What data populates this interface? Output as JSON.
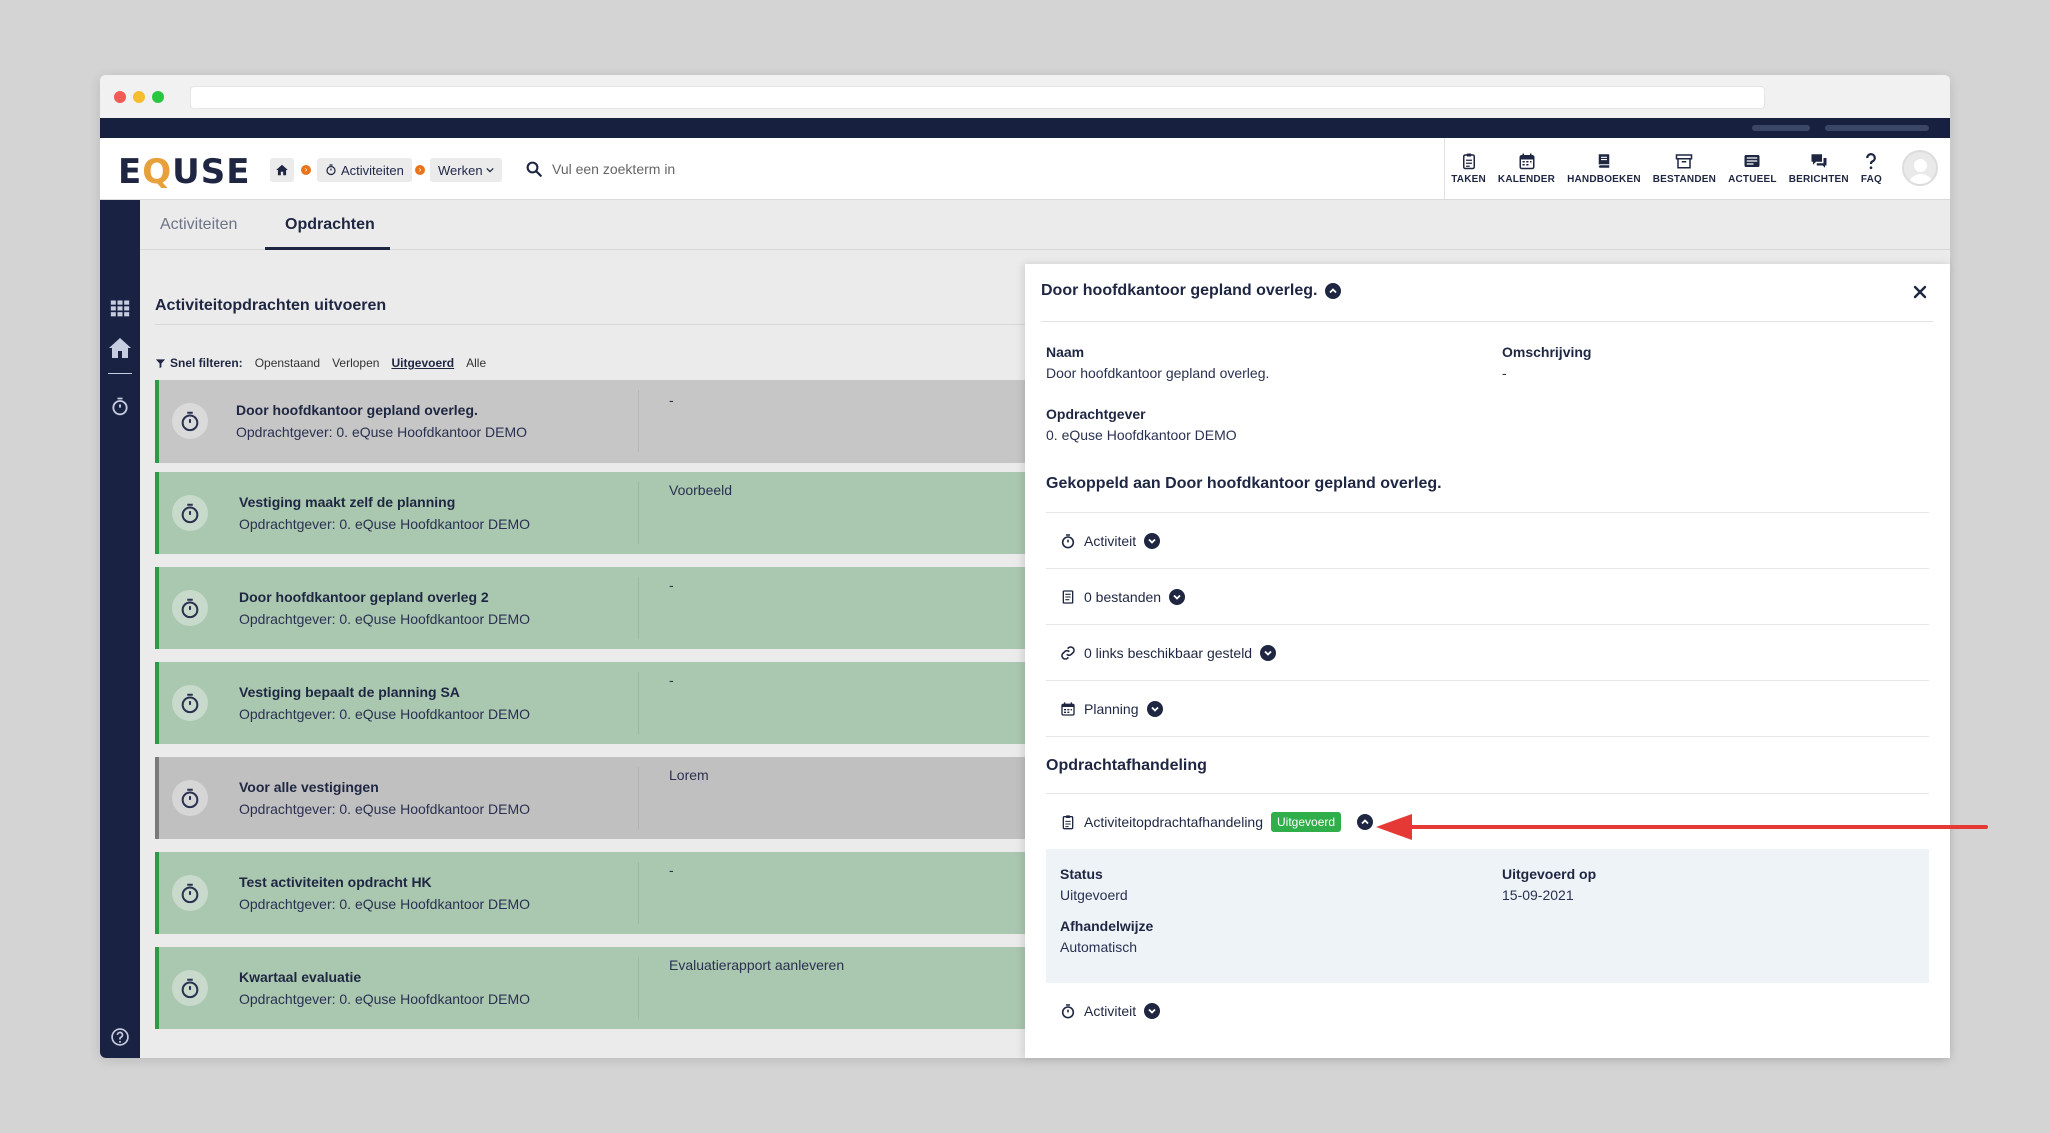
{
  "header": {
    "logo": "EQUSE",
    "breadcrumb": {
      "activities": "Activiteiten",
      "work": "Werken"
    },
    "search_placeholder": "Vul een zoekterm in",
    "nav": [
      {
        "label": "TAKEN",
        "icon": "clipboard-icon"
      },
      {
        "label": "KALENDER",
        "icon": "calendar-icon"
      },
      {
        "label": "HANDBOEKEN",
        "icon": "book-icon"
      },
      {
        "label": "BESTANDEN",
        "icon": "archive-icon"
      },
      {
        "label": "ACTUEEL",
        "icon": "news-icon"
      },
      {
        "label": "BERICHTEN",
        "icon": "chat-icon"
      },
      {
        "label": "FAQ",
        "icon": "question-icon"
      }
    ]
  },
  "tabs": {
    "activities": "Activiteiten",
    "assignments": "Opdrachten"
  },
  "list": {
    "title": "Activiteitopdrachten uitvoeren",
    "filters": {
      "label": "Snel filteren:",
      "options": [
        "Openstaand",
        "Verlopen",
        "Uitgevoerd",
        "Alle"
      ],
      "active": "Uitgevoerd"
    },
    "items": [
      {
        "title": "Door hoofdkantoor gepland overleg.",
        "sub": "Opdrachtgever: 0. eQuse Hoofdkantoor DEMO",
        "desc": "-"
      },
      {
        "title": "Vestiging maakt zelf de planning",
        "sub": "Opdrachtgever: 0. eQuse Hoofdkantoor DEMO",
        "desc": "Voorbeeld"
      },
      {
        "title": "Door hoofdkantoor gepland overleg 2",
        "sub": "Opdrachtgever: 0. eQuse Hoofdkantoor DEMO",
        "desc": "-"
      },
      {
        "title": "Vestiging bepaalt de planning SA",
        "sub": "Opdrachtgever: 0. eQuse Hoofdkantoor DEMO",
        "desc": "-"
      },
      {
        "title": "Voor alle vestigingen",
        "sub": "Opdrachtgever: 0. eQuse Hoofdkantoor DEMO",
        "desc": "Lorem"
      },
      {
        "title": "Test activiteiten opdracht HK",
        "sub": "Opdrachtgever: 0. eQuse Hoofdkantoor DEMO",
        "desc": "-"
      },
      {
        "title": "Kwartaal evaluatie",
        "sub": "Opdrachtgever: 0. eQuse Hoofdkantoor DEMO",
        "desc": "Evaluatierapport aanleveren"
      }
    ]
  },
  "panel": {
    "title": "Door hoofdkantoor gepland overleg.",
    "fields": {
      "name_label": "Naam",
      "name_value": "Door hoofdkantoor gepland overleg.",
      "desc_label": "Omschrijving",
      "desc_value": "-",
      "client_label": "Opdrachtgever",
      "client_value": "0. eQuse Hoofdkantoor DEMO"
    },
    "linked_heading": "Gekoppeld aan Door hoofdkantoor gepland overleg.",
    "linked_rows": {
      "activity": "Activiteit",
      "files": "0 bestanden",
      "links": "0 links beschikbaar gesteld",
      "planning": "Planning"
    },
    "handling_heading": "Opdrachtafhandeling",
    "handling_row": {
      "label": "Activiteitopdrachtafhandeling",
      "badge": "Uitgevoerd"
    },
    "handling_details": {
      "status_label": "Status",
      "status_value": "Uitgevoerd",
      "done_label": "Uitgevoerd op",
      "done_value": "15-09-2021",
      "method_label": "Afhandelwijze",
      "method_value": "Automatisch"
    },
    "bottom_row": "Activiteit"
  },
  "colors": {
    "accent": "#1e2642",
    "success": "#2fae4a",
    "arrow": "#e53935",
    "card_green": "#aac7b0"
  }
}
